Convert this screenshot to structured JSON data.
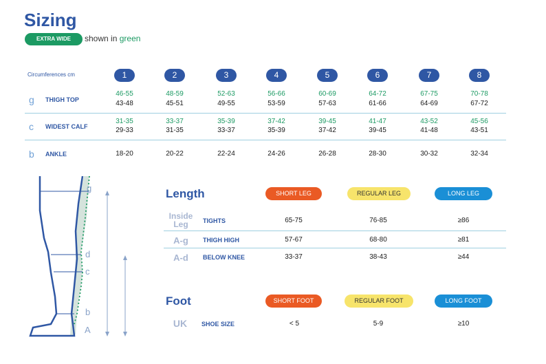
{
  "title": "Sizing",
  "legend": {
    "badge": "EXTRA WIDE",
    "text_pre": "shown in",
    "text_color": "green"
  },
  "circumference_label": "Circumferences cm",
  "sizes": [
    "1",
    "2",
    "3",
    "4",
    "5",
    "6",
    "7",
    "8"
  ],
  "rows": [
    {
      "letter": "g",
      "label": "THIGH TOP",
      "extra_wide": [
        "46-55",
        "48-59",
        "52-63",
        "56-66",
        "60-69",
        "64-72",
        "67-75",
        "70-78"
      ],
      "standard": [
        "43-48",
        "45-51",
        "49-55",
        "53-59",
        "57-63",
        "61-66",
        "64-69",
        "67-72"
      ]
    },
    {
      "letter": "c",
      "label": "WIDEST CALF",
      "extra_wide": [
        "31-35",
        "33-37",
        "35-39",
        "37-42",
        "39-45",
        "41-47",
        "43-52",
        "45-56"
      ],
      "standard": [
        "29-33",
        "31-35",
        "33-37",
        "35-39",
        "37-42",
        "39-45",
        "41-48",
        "43-51"
      ]
    },
    {
      "letter": "b",
      "label": "ANKLE",
      "standard": [
        "18-20",
        "20-22",
        "22-24",
        "24-26",
        "26-28",
        "28-30",
        "30-32",
        "32-34"
      ]
    }
  ],
  "length": {
    "title": "Length",
    "columns": [
      "SHORT LEG",
      "REGULAR LEG",
      "LONG LEG"
    ],
    "rows": [
      {
        "letter_line1": "Inside",
        "letter_line2": "Leg",
        "label": "TIGHTS",
        "values": [
          "65-75",
          "76-85",
          "≥86"
        ]
      },
      {
        "letter_line1": "A-g",
        "letter_line2": "",
        "label": "THIGH HIGH",
        "values": [
          "57-67",
          "68-80",
          "≥81"
        ]
      },
      {
        "letter_line1": "A-d",
        "letter_line2": "",
        "label": "BELOW KNEE",
        "values": [
          "33-37",
          "38-43",
          "≥44"
        ]
      }
    ]
  },
  "foot": {
    "title": "Foot",
    "columns": [
      "SHORT FOOT",
      "REGULAR FOOT",
      "LONG FOOT"
    ],
    "row": {
      "letter": "UK",
      "label": "SHOE SIZE",
      "values": [
        "< 5",
        "5-9",
        "≥10"
      ]
    }
  },
  "leg_letters": [
    "g",
    "d",
    "c",
    "b",
    "A"
  ],
  "colors": {
    "brand": "#2f57a4",
    "green": "#1c9a63",
    "short": "#ea5a24",
    "regular": "#f7e46b",
    "long": "#1a8fd6"
  }
}
